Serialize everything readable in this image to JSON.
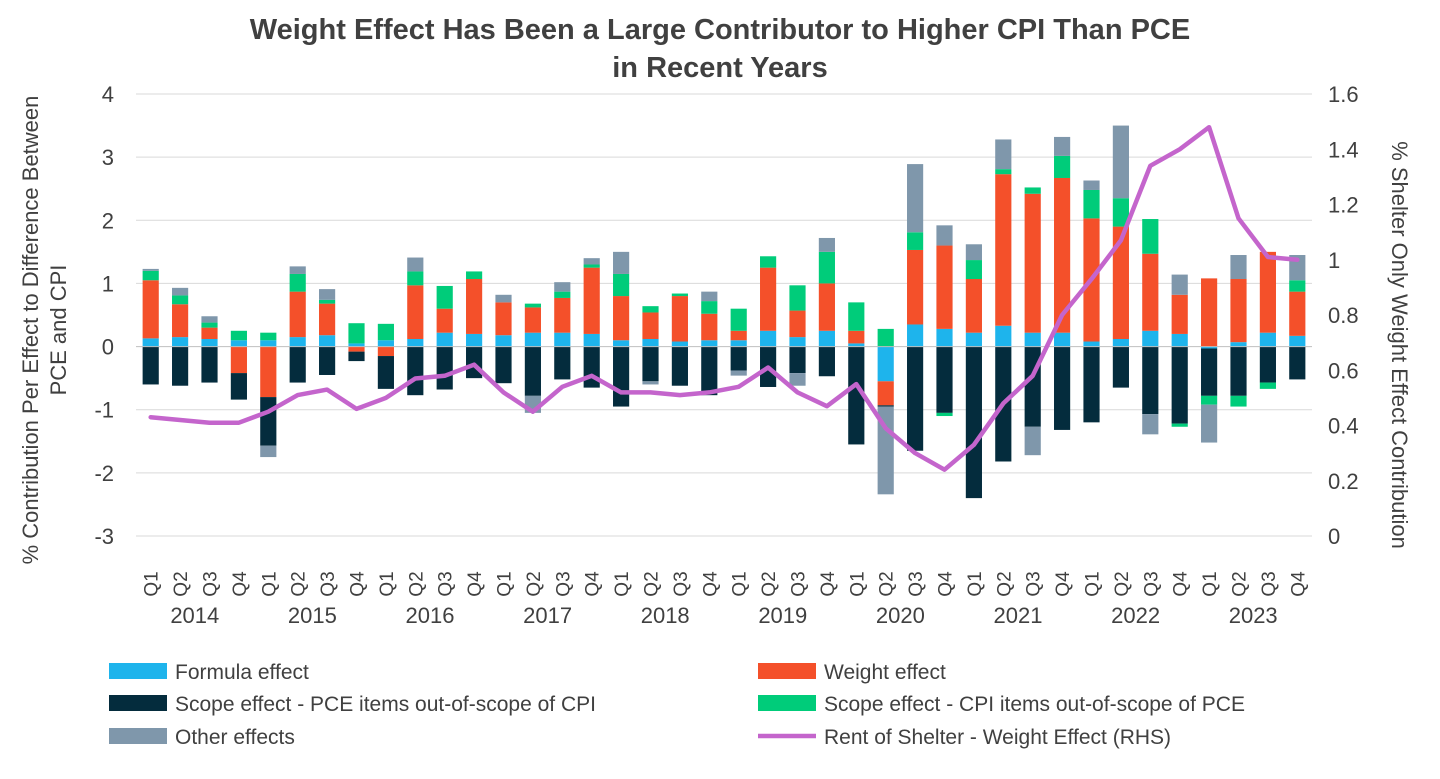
{
  "chart_data": {
    "type": "bar",
    "stacked": true,
    "title": [
      "Weight Effect Has Been a Large Contributor to Higher CPI Than PCE",
      "in Recent Years"
    ],
    "ylabel_left": [
      "% Contribution Per Effect to Difference Between",
      "PCE and CPI"
    ],
    "ylabel_right": "% Shelter Only Weight Effect Contribution",
    "ylim_left": [
      -3,
      4
    ],
    "ylim_right": [
      0,
      1.6
    ],
    "yticks_left": [
      "-3",
      "-2",
      "-1",
      "0",
      "1",
      "2",
      "3",
      "4"
    ],
    "yticks_right": [
      "0",
      "0.2",
      "0.4",
      "0.6",
      "0.8",
      "1",
      "1.2",
      "1.4",
      "1.6"
    ],
    "quarters": [
      "Q1",
      "Q2",
      "Q3",
      "Q4",
      "Q1",
      "Q2",
      "Q3",
      "Q4",
      "Q1",
      "Q2",
      "Q3",
      "Q4",
      "Q1",
      "Q2",
      "Q3",
      "Q4",
      "Q1",
      "Q2",
      "Q3",
      "Q4",
      "Q1",
      "Q2",
      "Q3",
      "Q4",
      "Q1",
      "Q2",
      "Q3",
      "Q4",
      "Q1",
      "Q2",
      "Q3",
      "Q4",
      "Q1",
      "Q2",
      "Q3",
      "Q4",
      "Q1",
      "Q2",
      "Q3",
      "Q4"
    ],
    "years": [
      "2014",
      "2015",
      "2016",
      "2017",
      "2018",
      "2019",
      "2020",
      "2021",
      "2022",
      "2023"
    ],
    "series": [
      {
        "name": "Formula effect",
        "color": "#1eb4ec",
        "values": [
          0.13,
          0.15,
          0.12,
          0.1,
          0.1,
          0.15,
          0.18,
          0.05,
          0.1,
          0.12,
          0.22,
          0.2,
          0.18,
          0.22,
          0.22,
          0.2,
          0.1,
          0.12,
          0.08,
          0.1,
          0.1,
          0.25,
          0.15,
          0.25,
          0.05,
          -0.55,
          0.35,
          0.28,
          0.22,
          0.33,
          0.22,
          0.22,
          0.08,
          0.12,
          0.25,
          0.2,
          -0.03,
          0.07,
          0.22,
          0.17
        ]
      },
      {
        "name": "Weight effect",
        "color": "#f4502a",
        "values": [
          0.92,
          0.52,
          0.18,
          -0.42,
          -0.8,
          0.72,
          0.5,
          -0.08,
          -0.15,
          0.85,
          0.38,
          0.87,
          0.52,
          0.4,
          0.55,
          1.05,
          0.7,
          0.42,
          0.72,
          0.42,
          0.15,
          1.0,
          0.42,
          0.75,
          0.2,
          -0.38,
          1.18,
          1.32,
          0.85,
          2.4,
          2.2,
          2.45,
          1.95,
          1.78,
          1.22,
          0.62,
          1.08,
          1.0,
          1.28,
          0.7
        ]
      },
      {
        "name": "Scope effect - PCE items out-of-scope of CPI",
        "color": "#042c3d",
        "values": [
          -0.6,
          -0.62,
          -0.57,
          -0.42,
          -0.77,
          -0.57,
          -0.45,
          -0.15,
          -0.52,
          -0.77,
          -0.68,
          -0.5,
          -0.58,
          -0.78,
          -0.52,
          -0.65,
          -0.95,
          -0.55,
          -0.62,
          -0.77,
          -0.38,
          -0.64,
          -0.42,
          -0.47,
          -1.55,
          -0.02,
          -1.65,
          -1.05,
          -2.4,
          -1.82,
          -1.27,
          -1.32,
          -1.2,
          -0.65,
          -1.07,
          -1.22,
          -0.75,
          -0.78,
          -0.57,
          -0.52
        ]
      },
      {
        "name": "Scope effect - CPI items out-of-scope of PCE",
        "color": "#00cc7a",
        "values": [
          0.15,
          0.14,
          0.08,
          0.15,
          0.12,
          0.28,
          0.06,
          0.32,
          0.26,
          0.22,
          0.36,
          0.12,
          0.0,
          0.06,
          0.1,
          0.05,
          0.35,
          0.1,
          0.04,
          0.2,
          0.35,
          0.18,
          0.4,
          0.5,
          0.45,
          0.28,
          0.28,
          -0.05,
          0.3,
          0.08,
          0.1,
          0.35,
          0.45,
          0.45,
          0.55,
          -0.05,
          -0.14,
          -0.17,
          -0.1,
          0.18
        ]
      },
      {
        "name": "Other effects",
        "color": "#7f97ab",
        "values": [
          0.03,
          0.12,
          0.1,
          0.0,
          -0.18,
          0.12,
          0.17,
          0.0,
          0.0,
          0.22,
          0.0,
          0.0,
          0.12,
          -0.27,
          0.15,
          0.1,
          0.35,
          -0.05,
          0.0,
          0.15,
          -0.08,
          0.0,
          -0.2,
          0.22,
          0.0,
          -1.39,
          1.08,
          0.32,
          0.25,
          0.47,
          -0.45,
          0.3,
          0.15,
          1.15,
          -0.32,
          0.32,
          -0.6,
          0.38,
          0.0,
          0.4
        ]
      }
    ],
    "line": {
      "name": "Rent of Shelter - Weight Effect (RHS)",
      "color": "#c465cc",
      "axis": "right",
      "values": [
        0.43,
        0.42,
        0.41,
        0.41,
        0.45,
        0.51,
        0.53,
        0.46,
        0.5,
        0.57,
        0.58,
        0.62,
        0.52,
        0.45,
        0.54,
        0.58,
        0.52,
        0.52,
        0.51,
        0.52,
        0.54,
        0.61,
        0.52,
        0.47,
        0.55,
        0.39,
        0.3,
        0.24,
        0.33,
        0.48,
        0.58,
        0.8,
        0.93,
        1.07,
        1.34,
        1.4,
        1.48,
        1.15,
        1.01,
        1.0
      ]
    },
    "legend": [
      "Formula effect",
      "Weight effect",
      "Scope effect - PCE items out-of-scope of CPI",
      "Scope effect - CPI items out-of-scope of PCE",
      "Other effects",
      "Rent of Shelter - Weight Effect (RHS)"
    ],
    "legend_position": "bottom",
    "grid": true
  }
}
